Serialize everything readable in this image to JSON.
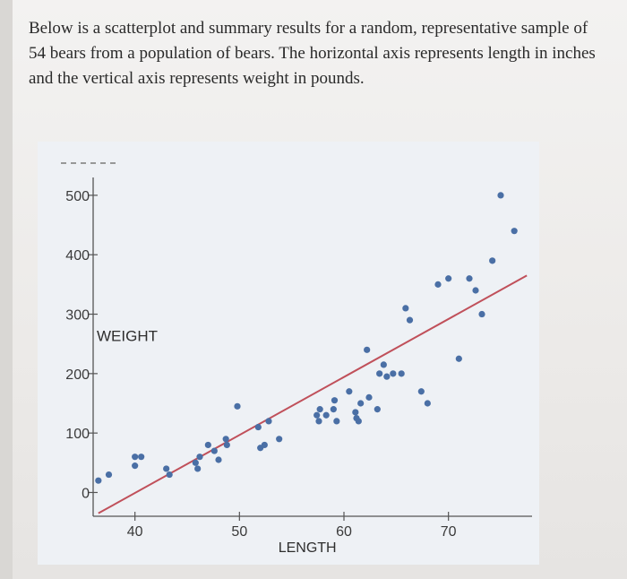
{
  "intro_text": "Below is a scatterplot and summary results for a random, representative sample of 54 bears from a population of bears. The horizontal axis represents length in inches and the vertical axis represents weight in pounds.",
  "chart_data": {
    "type": "scatter",
    "xlabel": "LENGTH",
    "ylabel": "WEIGHT",
    "x_ticks": [
      40,
      50,
      60,
      70
    ],
    "y_ticks": [
      0,
      100,
      200,
      300,
      400,
      500
    ],
    "xlim": [
      36,
      78
    ],
    "ylim": [
      -40,
      530
    ],
    "point_color": "#4a6fa5",
    "line_color": "#c0505a",
    "regression_line": {
      "x": [
        36.5,
        77.5
      ],
      "y": [
        -35,
        365
      ]
    },
    "points": [
      {
        "x": 36.5,
        "y": 20
      },
      {
        "x": 37.5,
        "y": 30
      },
      {
        "x": 40,
        "y": 60
      },
      {
        "x": 40.6,
        "y": 60
      },
      {
        "x": 40,
        "y": 45
      },
      {
        "x": 43,
        "y": 40
      },
      {
        "x": 43.3,
        "y": 30
      },
      {
        "x": 45.8,
        "y": 50
      },
      {
        "x": 46.2,
        "y": 60
      },
      {
        "x": 46,
        "y": 40
      },
      {
        "x": 47,
        "y": 80
      },
      {
        "x": 47.6,
        "y": 70
      },
      {
        "x": 48,
        "y": 55
      },
      {
        "x": 48.8,
        "y": 80
      },
      {
        "x": 48.7,
        "y": 90
      },
      {
        "x": 49.8,
        "y": 145
      },
      {
        "x": 51.8,
        "y": 110
      },
      {
        "x": 52,
        "y": 75
      },
      {
        "x": 52.4,
        "y": 80
      },
      {
        "x": 52.8,
        "y": 120
      },
      {
        "x": 53.8,
        "y": 90
      },
      {
        "x": 57.4,
        "y": 130
      },
      {
        "x": 57.7,
        "y": 140
      },
      {
        "x": 57.6,
        "y": 120
      },
      {
        "x": 58.3,
        "y": 130
      },
      {
        "x": 59,
        "y": 140
      },
      {
        "x": 59.1,
        "y": 155
      },
      {
        "x": 59.3,
        "y": 120
      },
      {
        "x": 60.5,
        "y": 170
      },
      {
        "x": 61.1,
        "y": 135
      },
      {
        "x": 61.2,
        "y": 125
      },
      {
        "x": 61.4,
        "y": 120
      },
      {
        "x": 61.6,
        "y": 150
      },
      {
        "x": 62.2,
        "y": 240
      },
      {
        "x": 62.4,
        "y": 160
      },
      {
        "x": 63.2,
        "y": 140
      },
      {
        "x": 63.4,
        "y": 200
      },
      {
        "x": 63.8,
        "y": 215
      },
      {
        "x": 64.1,
        "y": 195
      },
      {
        "x": 64.7,
        "y": 200
      },
      {
        "x": 65.5,
        "y": 200
      },
      {
        "x": 65.9,
        "y": 310
      },
      {
        "x": 66.3,
        "y": 290
      },
      {
        "x": 67.4,
        "y": 170
      },
      {
        "x": 68,
        "y": 150
      },
      {
        "x": 69,
        "y": 350
      },
      {
        "x": 70,
        "y": 360
      },
      {
        "x": 71,
        "y": 225
      },
      {
        "x": 72,
        "y": 360
      },
      {
        "x": 72.6,
        "y": 340
      },
      {
        "x": 73.2,
        "y": 300
      },
      {
        "x": 74.2,
        "y": 390
      },
      {
        "x": 75,
        "y": 500
      },
      {
        "x": 76.3,
        "y": 440
      }
    ]
  }
}
